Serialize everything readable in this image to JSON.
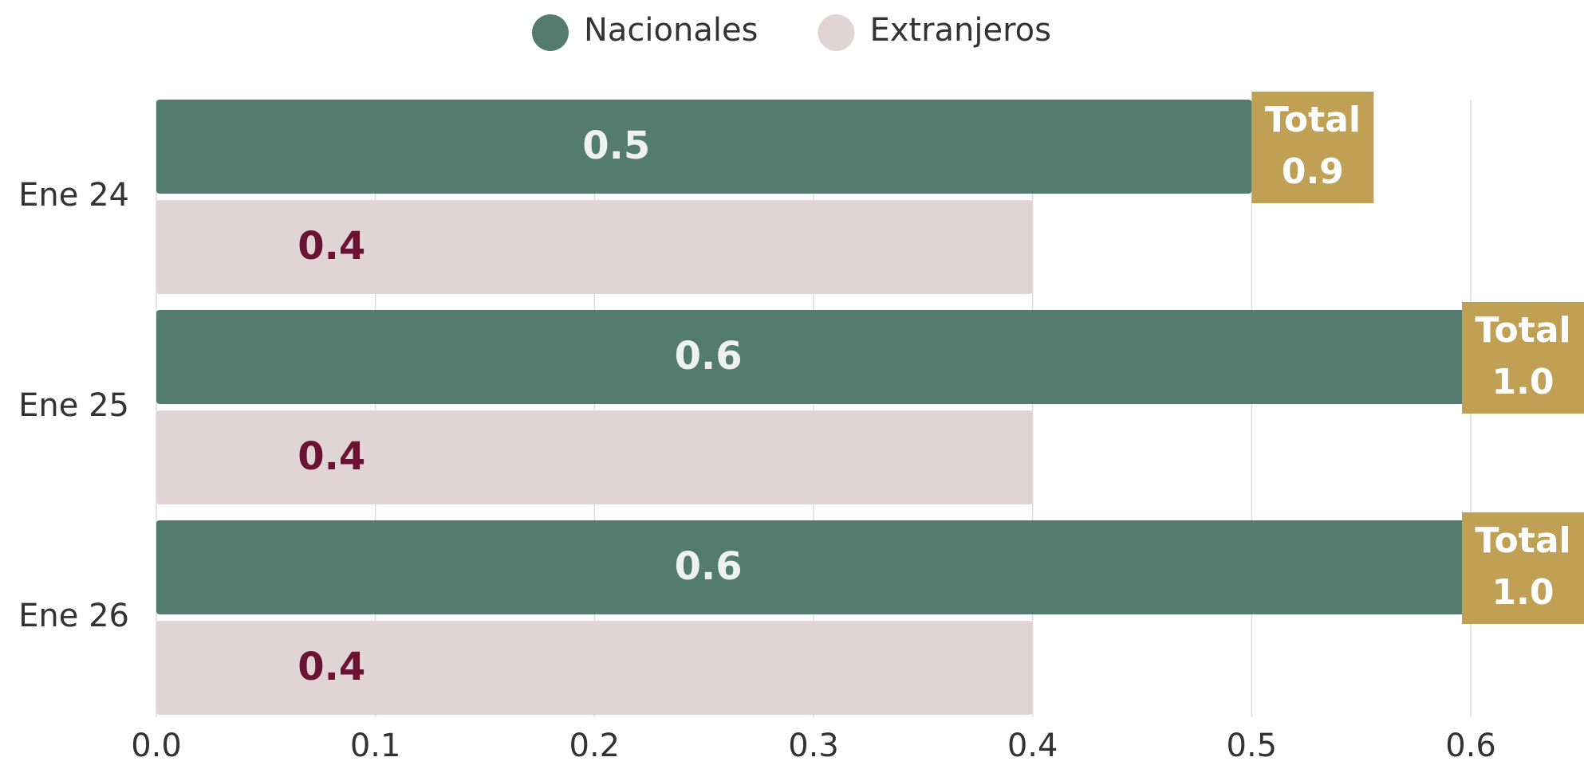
{
  "chart_data": {
    "type": "bar",
    "orientation": "horizontal",
    "categories": [
      "Ene 24",
      "Ene 25",
      "Ene 26"
    ],
    "series": [
      {
        "name": "Nacionales",
        "color": "#537c6f",
        "label_color": "#eef1ef",
        "values": [
          0.5,
          0.6,
          0.6
        ]
      },
      {
        "name": "Extranjeros",
        "color": "#e0d5d4",
        "label_color": "#6b1334",
        "values": [
          0.4,
          0.4,
          0.4
        ]
      }
    ],
    "totals": {
      "label": "Total",
      "color": "#bfa055",
      "values": [
        0.9,
        1.0,
        1.0
      ],
      "value_labels": [
        "0.9",
        "1.0",
        "1.0"
      ]
    },
    "xlim": [
      0,
      0.6
    ],
    "xticks": [
      {
        "value": 0,
        "label": "0.0"
      },
      0.1,
      0.2,
      0.3,
      0.4,
      0.5,
      0.6
    ],
    "grid": true,
    "legend": "top"
  }
}
